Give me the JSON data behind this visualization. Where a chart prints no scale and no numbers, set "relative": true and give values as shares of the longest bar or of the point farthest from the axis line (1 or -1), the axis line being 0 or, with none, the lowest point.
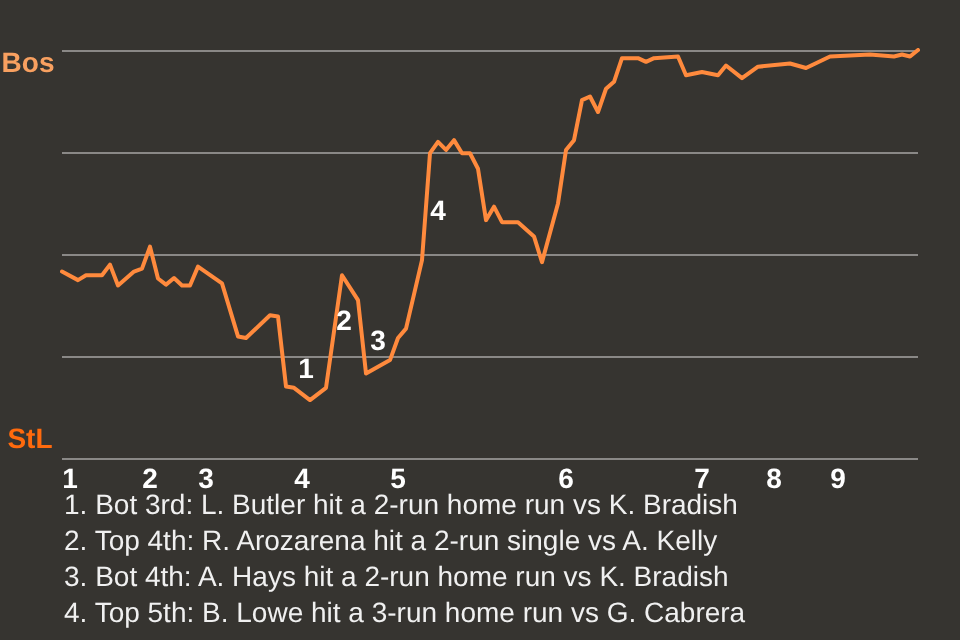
{
  "chart_data": {
    "type": "line",
    "relative": true,
    "categories": [
      null,
      "1",
      null,
      null,
      null,
      null,
      null,
      null,
      null,
      null,
      null,
      "2",
      null,
      null,
      null,
      null,
      null,
      null,
      "3",
      null,
      null,
      null,
      null,
      null,
      null,
      null,
      null,
      null,
      null,
      null,
      "4",
      null,
      null,
      null,
      null,
      null,
      null,
      null,
      null,
      null,
      null,
      null,
      "5",
      null,
      null,
      null,
      null,
      null,
      null,
      null,
      null,
      null,
      null,
      null,
      null,
      null,
      null,
      null,
      null,
      null,
      null,
      null,
      null,
      "6",
      null,
      null,
      null,
      null,
      null,
      null,
      null,
      null,
      null,
      null,
      null,
      null,
      null,
      null,
      null,
      null,
      "7",
      null,
      null,
      null,
      null,
      null,
      null,
      null,
      null,
      "8",
      null,
      null,
      null,
      null,
      null,
      null,
      null,
      "9",
      null,
      null,
      null,
      null,
      null,
      null,
      null,
      null,
      null,
      null
    ],
    "series": [
      {
        "color": "#ff8a3d",
        "values": [
          0.457,
          null,
          0.436,
          0.448,
          null,
          0.448,
          0.474,
          0.423,
          null,
          0.457,
          0.464,
          0.518,
          0.44,
          0.425,
          0.441,
          0.423,
          0.423,
          0.469,
          null,
          null,
          0.428,
          null,
          0.298,
          0.294,
          null,
          null,
          0.35,
          0.347,
          0.175,
          0.172,
          null,
          0.142,
          null,
          0.172,
          null,
          0.448,
          null,
          0.387,
          0.207,
          null,
          null,
          0.24,
          0.294,
          0.317,
          null,
          0.485,
          0.747,
          0.775,
          0.755,
          0.779,
          0.747,
          0.747,
          0.709,
          0.583,
          0.616,
          0.578,
          null,
          0.578,
          null,
          0.543,
          0.48,
          null,
          0.624,
          0.755,
          0.779,
          0.877,
          0.886,
          0.848,
          0.905,
          0.922,
          0.98,
          null,
          0.98,
          0.971,
          0.98,
          null,
          null,
          0.984,
          0.938,
          null,
          0.946,
          null,
          0.938,
          0.962,
          null,
          0.931,
          null,
          0.959,
          null,
          null,
          null,
          0.967,
          null,
          0.956,
          null,
          null,
          0.984,
          null,
          null,
          null,
          null,
          0.989,
          null,
          null,
          0.984,
          0.989,
          0.984,
          1.0
        ]
      }
    ],
    "grid": "y",
    "marker": "none",
    "line_style": "solid",
    "annotations": [
      "Bos",
      "StL",
      "1",
      "2",
      "3",
      "4",
      "1. Bot 3rd: L. Butler hit a 2-run home run vs K. Bradish",
      "2. Top 4th: R. Arozarena hit a 2-run single vs A. Kelly",
      "3. Bot 4th: A. Hays hit a 2-run home run vs K. Bradish",
      "4. Top 5th: B. Lowe hit a 3-run home run vs G. Cabrera"
    ]
  }
}
